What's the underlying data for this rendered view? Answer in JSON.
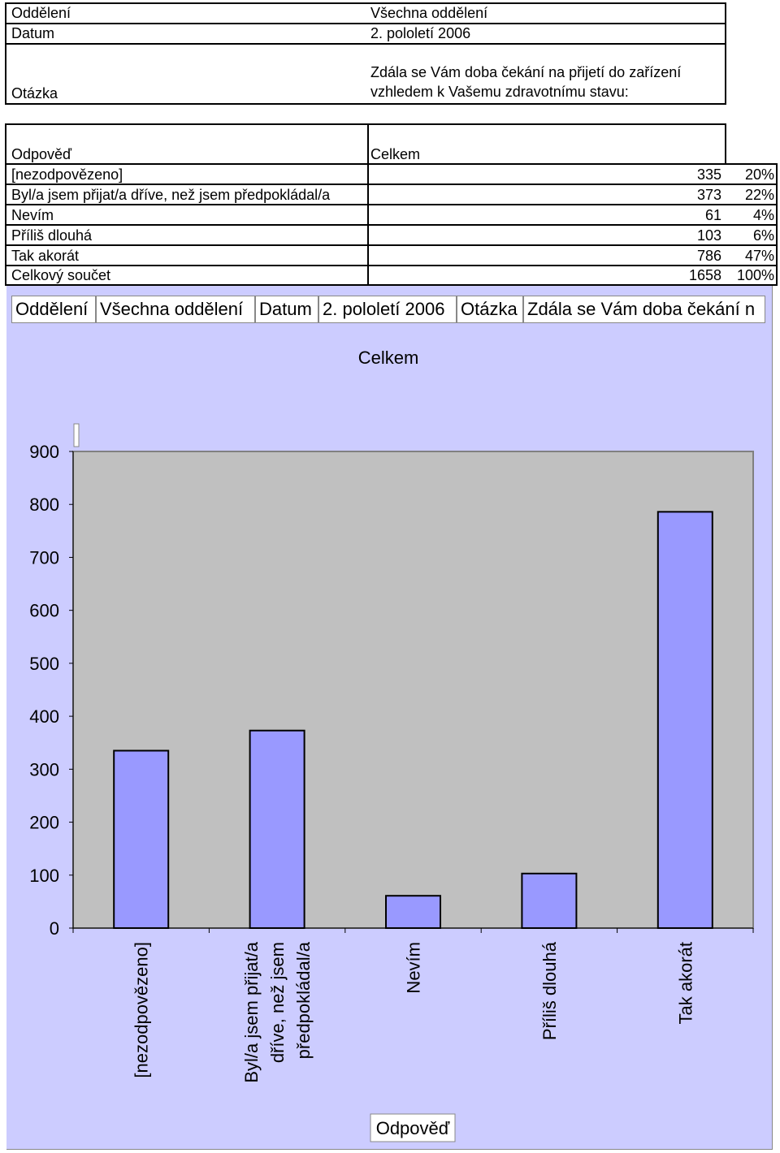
{
  "header": {
    "rows": [
      {
        "label": "Oddělení",
        "value": "Všechna oddělení"
      },
      {
        "label": "Datum",
        "value": "2. pololetí 2006"
      },
      {
        "label": "Otázka",
        "value_lines": [
          "Zdála se Vám doba čekání na přijetí do zařízení",
          "vzhledem k Vašemu zdravotnímu stavu:"
        ]
      }
    ]
  },
  "table": {
    "col_label": "Odpověď",
    "col_total": "Celkem",
    "rows": [
      {
        "label": "[nezodpovězeno]",
        "count": "335",
        "pct": "20%"
      },
      {
        "label": "Byl/a jsem přijat/a dříve, než jsem předpokládal/a",
        "count": "373",
        "pct": "22%"
      },
      {
        "label": "Nevím",
        "count": "61",
        "pct": "4%"
      },
      {
        "label": "Příliš dlouhá",
        "count": "103",
        "pct": "6%"
      },
      {
        "label": "Tak akorát",
        "count": "786",
        "pct": "47%"
      },
      {
        "label": "Celkový součet",
        "count": "1658",
        "pct": "100%"
      }
    ]
  },
  "filters": {
    "f1": "Oddělení",
    "f2": "Všechna oddělení",
    "f3": "Datum",
    "f4": "2. pololetí 2006",
    "f5": "Otázka",
    "f6": "Zdála se Vám doba čekání n"
  },
  "chart_data": {
    "type": "bar",
    "title": "Celkem",
    "xlabel": "Odpověď",
    "ylabel": "",
    "categories": [
      "[nezodpovězeno]",
      "Byl/a jsem přijat/a dříve, než jsem předpokládal/a",
      "Nevím",
      "Příliš dlouhá",
      "Tak akorát"
    ],
    "category_label_lines": [
      [
        "[nezodpovězeno]"
      ],
      [
        "Byl/a jsem přijat/a",
        "dříve, než jsem",
        "předpokládal/a"
      ],
      [
        "Nevím"
      ],
      [
        "Příliš dlouhá"
      ],
      [
        "Tak akorát"
      ]
    ],
    "values": [
      335,
      373,
      61,
      103,
      786
    ],
    "ylim": [
      0,
      900
    ],
    "yticks": [
      0,
      100,
      200,
      300,
      400,
      500,
      600,
      700,
      800,
      900
    ],
    "grid": false,
    "colors": {
      "bar": "#9999ff",
      "plot_bg": "#c0c0c0",
      "chart_bg": "#ccccff"
    }
  }
}
